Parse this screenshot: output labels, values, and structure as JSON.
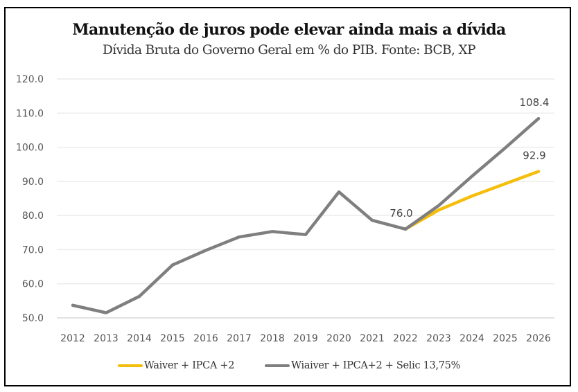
{
  "chart_data": {
    "type": "line",
    "title": "Manutenção de juros pode elevar ainda mais a dívida",
    "subtitle": "Dívida Bruta do Governo Geral em % do PIB. Fonte: BCB, XP",
    "xlabel": "",
    "ylabel": "",
    "ylim": [
      50,
      120
    ],
    "yticks": [
      "50.0",
      "60.0",
      "70.0",
      "80.0",
      "90.0",
      "100.0",
      "110.0",
      "120.0"
    ],
    "ytick_values": [
      50,
      60,
      70,
      80,
      90,
      100,
      110,
      120
    ],
    "grid": true,
    "legend_position": "bottom",
    "categories": [
      "2012",
      "2013",
      "2014",
      "2015",
      "2016",
      "2017",
      "2018",
      "2019",
      "2020",
      "2021",
      "2022",
      "2023",
      "2024",
      "2025",
      "2026"
    ],
    "series": [
      {
        "name": "Waiver + IPCA +2",
        "color": "#F5BE0B",
        "values": [
          null,
          null,
          null,
          null,
          null,
          null,
          null,
          null,
          null,
          null,
          76.0,
          81.6,
          85.7,
          89.3,
          92.9
        ],
        "labels": [
          {
            "index": 14,
            "text": "92.9"
          }
        ]
      },
      {
        "name": "Wiaiver + IPCA+2 + Selic 13,75%",
        "color": "#7F7F7F",
        "values": [
          53.7,
          51.5,
          56.3,
          65.5,
          69.8,
          73.7,
          75.3,
          74.4,
          86.9,
          78.6,
          76.0,
          82.9,
          91.5,
          99.8,
          108.4
        ],
        "labels": [
          {
            "index": 10,
            "text": "76.0"
          },
          {
            "index": 14,
            "text": "108.4"
          }
        ]
      }
    ]
  }
}
